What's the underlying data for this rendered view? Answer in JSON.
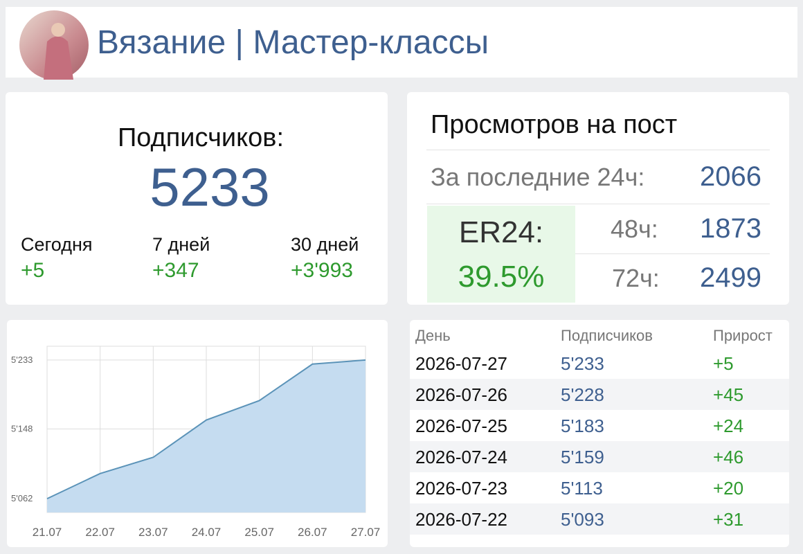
{
  "header": {
    "title": "Вязание | Мастер-классы"
  },
  "subscribers": {
    "label": "Подписчиков:",
    "value": "5233",
    "periods": [
      {
        "label": "Сегодня",
        "delta": "+5"
      },
      {
        "label": "7 дней",
        "delta": "+347"
      },
      {
        "label": "30 дней",
        "delta": "+3'993"
      }
    ]
  },
  "views": {
    "title": "Просмотров на пост",
    "last24_label": "За последние 24ч:",
    "last24_value": "2066",
    "er_label": "ER24:",
    "er_value": "39.5%",
    "h48_label": "48ч:",
    "h48_value": "1873",
    "h72_label": "72ч:",
    "h72_value": "2499"
  },
  "table": {
    "columns": [
      "День",
      "Подписчиков",
      "Прирост"
    ],
    "rows": [
      [
        "2026-07-27",
        "5'233",
        "+5"
      ],
      [
        "2026-07-26",
        "5'228",
        "+45"
      ],
      [
        "2026-07-25",
        "5'183",
        "+24"
      ],
      [
        "2026-07-24",
        "5'159",
        "+46"
      ],
      [
        "2026-07-23",
        "5'113",
        "+20"
      ],
      [
        "2026-07-22",
        "5'093",
        "+31"
      ]
    ]
  },
  "chart_data": {
    "type": "area",
    "categories": [
      "21.07",
      "22.07",
      "23.07",
      "24.07",
      "25.07",
      "26.07",
      "27.07"
    ],
    "values": [
      5062,
      5093,
      5113,
      5159,
      5183,
      5228,
      5233
    ],
    "color": "#5b93b8",
    "fill": "#c5dcf0",
    "ylim": [
      5045,
      5250
    ],
    "yticks": [
      {
        "value": 5062,
        "label": "5'062"
      },
      {
        "value": 5148,
        "label": "5'148"
      },
      {
        "value": 5233,
        "label": "5'233"
      }
    ],
    "grid": true
  }
}
